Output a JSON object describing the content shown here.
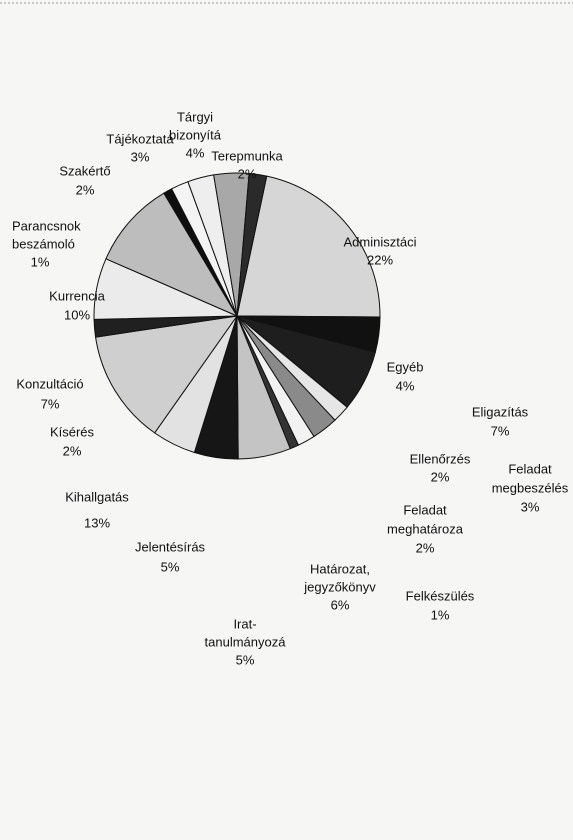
{
  "chart_data": {
    "type": "pie",
    "categories": [
      [
        "Adminisztáci"
      ],
      [
        "Egyéb"
      ],
      [
        "Eligazítás"
      ],
      [
        "Ellenőrzés"
      ],
      [
        "Feladat",
        "megbeszélés"
      ],
      [
        "Feladat",
        "meghatároza"
      ],
      [
        "Felkészülés"
      ],
      [
        "Határozat,",
        "jegyzőkönyv"
      ],
      [
        "Irat-",
        "tanulmányozá"
      ],
      [
        "Jelentésírás"
      ],
      [
        "Kihallgatás"
      ],
      [
        "Kísérés"
      ],
      [
        "Konzultáció"
      ],
      [
        "Kurrencia"
      ],
      [
        "Parancsnok",
        "beszámoló"
      ],
      [
        "Szakértő"
      ],
      [
        "Tájékoztatá"
      ],
      [
        "Tárgyi",
        "bizonyítá"
      ],
      [
        "Terepmunka"
      ]
    ],
    "values": [
      22,
      4,
      7,
      2,
      3,
      2,
      1,
      6,
      5,
      5,
      13,
      2,
      7,
      10,
      1,
      2,
      3,
      4,
      2
    ],
    "value_labels": [
      "22%",
      "4%",
      "7%",
      "2%",
      "3%",
      "2%",
      "1%",
      "6%",
      "5%",
      "5%",
      "13%",
      "2%",
      "7%",
      "10%",
      "1%",
      "2%",
      "3%",
      "4%",
      "2%"
    ],
    "colors": [
      "#d6d6d6",
      "#111111",
      "#1e1e1e",
      "#e6e6e6",
      "#8a8a8a",
      "#f2f2f2",
      "#333333",
      "#c4c4c4",
      "#161616",
      "#e2e2e2",
      "#cfcfcf",
      "#202020",
      "#ebebeb",
      "#bdbdbd",
      "#0e0e0e",
      "#f4f4f4",
      "#eeeeee",
      "#a8a8a8",
      "#2a2a2a"
    ]
  }
}
